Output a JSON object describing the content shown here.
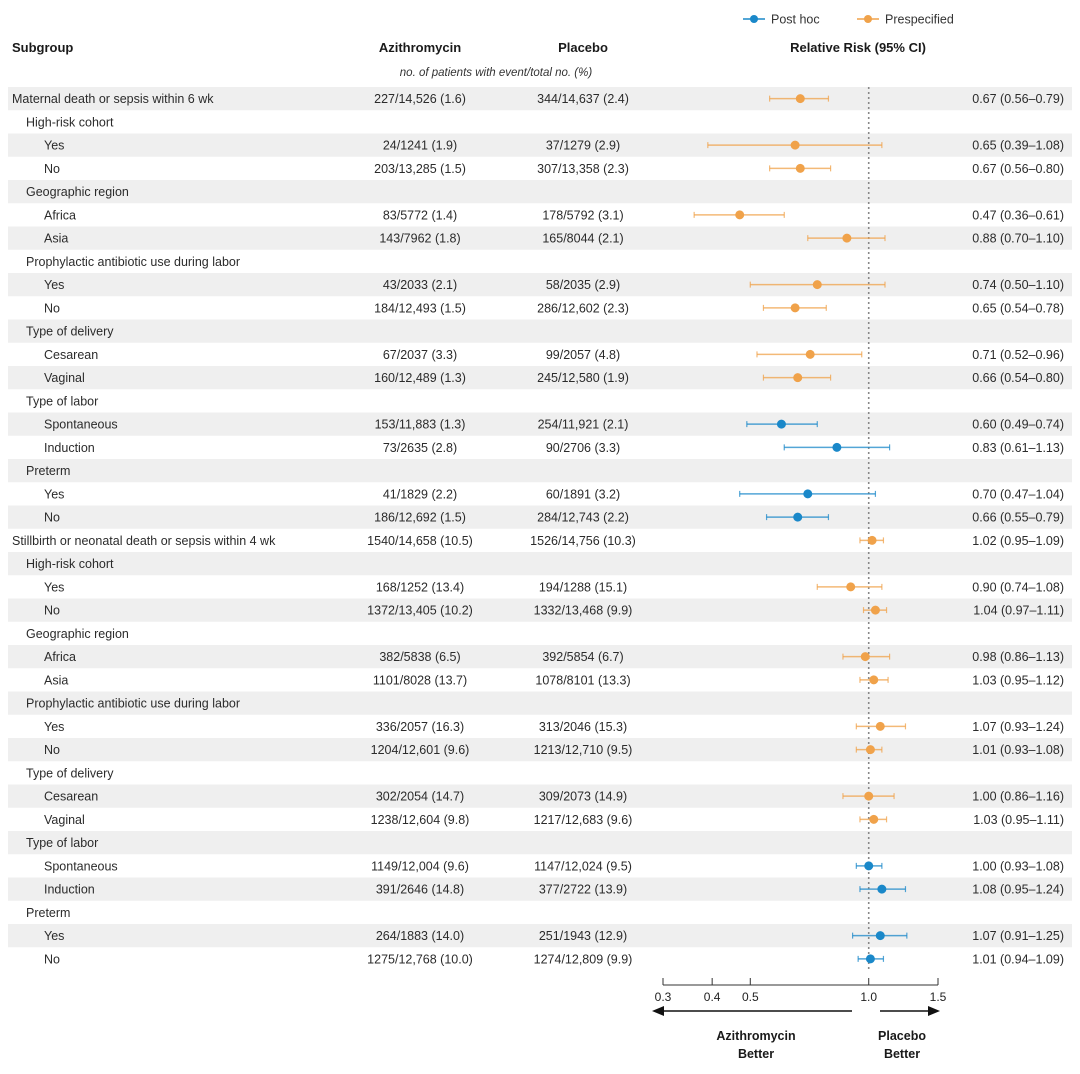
{
  "colors": {
    "prespecified": "#f0a24a",
    "posthoc": "#1a88c9",
    "band": "#efefef",
    "refline": "#888888",
    "axis": "#333333"
  },
  "legend": [
    {
      "name": "Post hoc",
      "color_key": "posthoc"
    },
    {
      "name": "Prespecified",
      "color_key": "prespecified"
    }
  ],
  "headers": {
    "subgroup": "Subgroup",
    "azithromycin": "Azithromycin",
    "placebo": "Placebo",
    "relative_risk": "Relative Risk (95% CI)",
    "subheader": "no. of patients with event/total no. (%)"
  },
  "axis": {
    "ticks": [
      "0.3",
      "0.4",
      "0.5",
      "1.0",
      "1.5"
    ],
    "left_label_line1": "Azithromycin",
    "left_label_line2": "Better",
    "right_label_line1": "Placebo",
    "right_label_line2": "Better"
  },
  "chart_data": {
    "type": "forest",
    "title": "",
    "xlabel": "Relative Risk (95% CI)",
    "xscale": "log",
    "xlim": [
      0.3,
      1.5
    ],
    "reference": 1.0,
    "rows": [
      {
        "label": "Maternal death or sepsis within 6 wk",
        "level": 0,
        "band": true,
        "azi": "227/14,526 (1.6)",
        "pla": "344/14,637 (2.4)",
        "rr_text": "0.67 (0.56–0.79)",
        "rr": 0.67,
        "lo": 0.56,
        "hi": 0.79,
        "series": "prespecified"
      },
      {
        "label": "High-risk cohort",
        "level": 1,
        "band": false
      },
      {
        "label": "Yes",
        "level": 2,
        "band": true,
        "azi": "24/1241 (1.9)",
        "pla": "37/1279 (2.9)",
        "rr_text": "0.65 (0.39–1.08)",
        "rr": 0.65,
        "lo": 0.39,
        "hi": 1.08,
        "series": "prespecified"
      },
      {
        "label": "No",
        "level": 2,
        "band": false,
        "azi": "203/13,285 (1.5)",
        "pla": "307/13,358 (2.3)",
        "rr_text": "0.67 (0.56–0.80)",
        "rr": 0.67,
        "lo": 0.56,
        "hi": 0.8,
        "series": "prespecified"
      },
      {
        "label": "Geographic region",
        "level": 1,
        "band": true
      },
      {
        "label": "Africa",
        "level": 2,
        "band": false,
        "azi": "83/5772 (1.4)",
        "pla": "178/5792 (3.1)",
        "rr_text": "0.47 (0.36–0.61)",
        "rr": 0.47,
        "lo": 0.36,
        "hi": 0.61,
        "series": "prespecified"
      },
      {
        "label": "Asia",
        "level": 2,
        "band": true,
        "azi": "143/7962 (1.8)",
        "pla": "165/8044 (2.1)",
        "rr_text": "0.88 (0.70–1.10)",
        "rr": 0.88,
        "lo": 0.7,
        "hi": 1.1,
        "series": "prespecified"
      },
      {
        "label": "Prophylactic antibiotic use during labor",
        "level": 1,
        "band": false
      },
      {
        "label": "Yes",
        "level": 2,
        "band": true,
        "azi": "43/2033 (2.1)",
        "pla": "58/2035 (2.9)",
        "rr_text": "0.74 (0.50–1.10)",
        "rr": 0.74,
        "lo": 0.5,
        "hi": 1.1,
        "series": "prespecified"
      },
      {
        "label": "No",
        "level": 2,
        "band": false,
        "azi": "184/12,493 (1.5)",
        "pla": "286/12,602 (2.3)",
        "rr_text": "0.65 (0.54–0.78)",
        "rr": 0.65,
        "lo": 0.54,
        "hi": 0.78,
        "series": "prespecified"
      },
      {
        "label": "Type of delivery",
        "level": 1,
        "band": true
      },
      {
        "label": "Cesarean",
        "level": 2,
        "band": false,
        "azi": "67/2037 (3.3)",
        "pla": "99/2057 (4.8)",
        "rr_text": "0.71 (0.52–0.96)",
        "rr": 0.71,
        "lo": 0.52,
        "hi": 0.96,
        "series": "prespecified"
      },
      {
        "label": "Vaginal",
        "level": 2,
        "band": true,
        "azi": "160/12,489 (1.3)",
        "pla": "245/12,580 (1.9)",
        "rr_text": "0.66 (0.54–0.80)",
        "rr": 0.66,
        "lo": 0.54,
        "hi": 0.8,
        "series": "prespecified"
      },
      {
        "label": "Type of labor",
        "level": 1,
        "band": false
      },
      {
        "label": "Spontaneous",
        "level": 2,
        "band": true,
        "azi": "153/11,883 (1.3)",
        "pla": "254/11,921 (2.1)",
        "rr_text": "0.60 (0.49–0.74)",
        "rr": 0.6,
        "lo": 0.49,
        "hi": 0.74,
        "series": "posthoc"
      },
      {
        "label": "Induction",
        "level": 2,
        "band": false,
        "azi": "73/2635 (2.8)",
        "pla": "90/2706 (3.3)",
        "rr_text": "0.83 (0.61–1.13)",
        "rr": 0.83,
        "lo": 0.61,
        "hi": 1.13,
        "series": "posthoc"
      },
      {
        "label": "Preterm",
        "level": 1,
        "band": true
      },
      {
        "label": "Yes",
        "level": 2,
        "band": false,
        "azi": "41/1829 (2.2)",
        "pla": "60/1891 (3.2)",
        "rr_text": "0.70 (0.47–1.04)",
        "rr": 0.7,
        "lo": 0.47,
        "hi": 1.04,
        "series": "posthoc"
      },
      {
        "label": "No",
        "level": 2,
        "band": true,
        "azi": "186/12,692 (1.5)",
        "pla": "284/12,743 (2.2)",
        "rr_text": "0.66 (0.55–0.79)",
        "rr": 0.66,
        "lo": 0.55,
        "hi": 0.79,
        "series": "posthoc"
      },
      {
        "label": "Stillbirth or neonatal death or sepsis within 4 wk",
        "level": 0,
        "band": false,
        "azi": "1540/14,658 (10.5)",
        "pla": "1526/14,756 (10.3)",
        "rr_text": "1.02 (0.95–1.09)",
        "rr": 1.02,
        "lo": 0.95,
        "hi": 1.09,
        "series": "prespecified"
      },
      {
        "label": "High-risk cohort",
        "level": 1,
        "band": true
      },
      {
        "label": "Yes",
        "level": 2,
        "band": false,
        "azi": "168/1252 (13.4)",
        "pla": "194/1288 (15.1)",
        "rr_text": "0.90 (0.74–1.08)",
        "rr": 0.9,
        "lo": 0.74,
        "hi": 1.08,
        "series": "prespecified"
      },
      {
        "label": "No",
        "level": 2,
        "band": true,
        "azi": "1372/13,405 (10.2)",
        "pla": "1332/13,468 (9.9)",
        "rr_text": "1.04 (0.97–1.11)",
        "rr": 1.04,
        "lo": 0.97,
        "hi": 1.11,
        "series": "prespecified"
      },
      {
        "label": "Geographic region",
        "level": 1,
        "band": false
      },
      {
        "label": "Africa",
        "level": 2,
        "band": true,
        "azi": "382/5838 (6.5)",
        "pla": "392/5854 (6.7)",
        "rr_text": "0.98 (0.86–1.13)",
        "rr": 0.98,
        "lo": 0.86,
        "hi": 1.13,
        "series": "prespecified"
      },
      {
        "label": "Asia",
        "level": 2,
        "band": false,
        "azi": "1101/8028 (13.7)",
        "pla": "1078/8101 (13.3)",
        "rr_text": "1.03 (0.95–1.12)",
        "rr": 1.03,
        "lo": 0.95,
        "hi": 1.12,
        "series": "prespecified"
      },
      {
        "label": "Prophylactic antibiotic use during labor",
        "level": 1,
        "band": true
      },
      {
        "label": "Yes",
        "level": 2,
        "band": false,
        "azi": "336/2057 (16.3)",
        "pla": "313/2046 (15.3)",
        "rr_text": "1.07 (0.93–1.24)",
        "rr": 1.07,
        "lo": 0.93,
        "hi": 1.24,
        "series": "prespecified"
      },
      {
        "label": "No",
        "level": 2,
        "band": true,
        "azi": "1204/12,601 (9.6)",
        "pla": "1213/12,710 (9.5)",
        "rr_text": "1.01 (0.93–1.08)",
        "rr": 1.01,
        "lo": 0.93,
        "hi": 1.08,
        "series": "prespecified"
      },
      {
        "label": "Type of delivery",
        "level": 1,
        "band": false
      },
      {
        "label": "Cesarean",
        "level": 2,
        "band": true,
        "azi": "302/2054 (14.7)",
        "pla": "309/2073 (14.9)",
        "rr_text": "1.00 (0.86–1.16)",
        "rr": 1.0,
        "lo": 0.86,
        "hi": 1.16,
        "series": "prespecified"
      },
      {
        "label": "Vaginal",
        "level": 2,
        "band": false,
        "azi": "1238/12,604 (9.8)",
        "pla": "1217/12,683 (9.6)",
        "rr_text": "1.03 (0.95–1.11)",
        "rr": 1.03,
        "lo": 0.95,
        "hi": 1.11,
        "series": "prespecified"
      },
      {
        "label": "Type of labor",
        "level": 1,
        "band": true
      },
      {
        "label": "Spontaneous",
        "level": 2,
        "band": false,
        "azi": "1149/12,004 (9.6)",
        "pla": "1147/12,024 (9.5)",
        "rr_text": "1.00 (0.93–1.08)",
        "rr": 1.0,
        "lo": 0.93,
        "hi": 1.08,
        "series": "posthoc"
      },
      {
        "label": "Induction",
        "level": 2,
        "band": true,
        "azi": "391/2646 (14.8)",
        "pla": "377/2722 (13.9)",
        "rr_text": "1.08 (0.95–1.24)",
        "rr": 1.08,
        "lo": 0.95,
        "hi": 1.24,
        "series": "posthoc"
      },
      {
        "label": "Preterm",
        "level": 1,
        "band": false
      },
      {
        "label": "Yes",
        "level": 2,
        "band": true,
        "azi": "264/1883 (14.0)",
        "pla": "251/1943 (12.9)",
        "rr_text": "1.07 (0.91–1.25)",
        "rr": 1.07,
        "lo": 0.91,
        "hi": 1.25,
        "series": "posthoc"
      },
      {
        "label": "No",
        "level": 2,
        "band": false,
        "azi": "1275/12,768 (10.0)",
        "pla": "1274/12,809 (9.9)",
        "rr_text": "1.01 (0.94–1.09)",
        "rr": 1.01,
        "lo": 0.94,
        "hi": 1.09,
        "series": "posthoc"
      }
    ]
  }
}
